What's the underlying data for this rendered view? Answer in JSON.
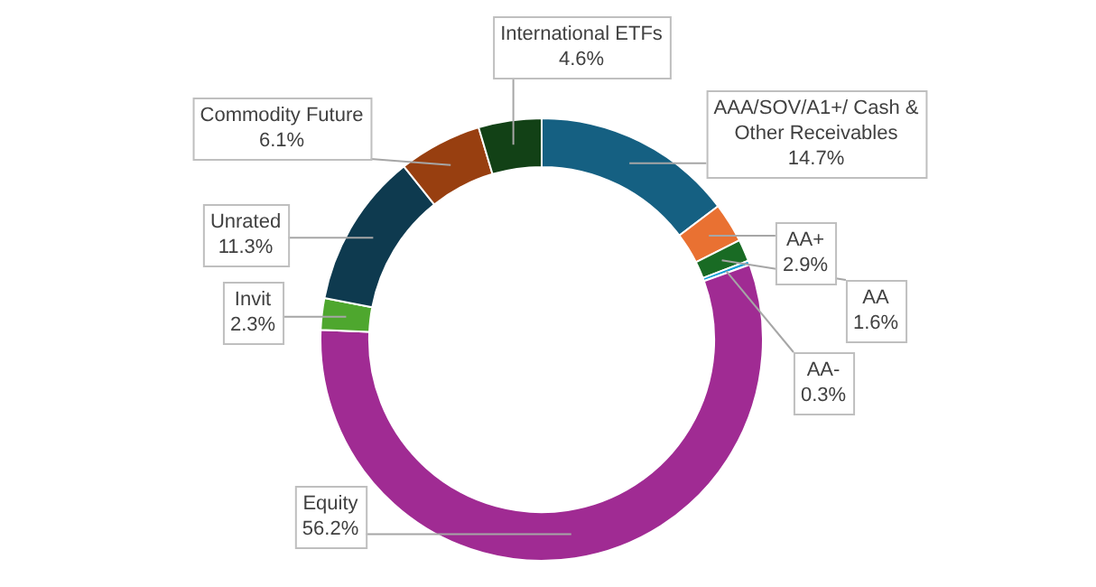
{
  "chart_data": {
    "type": "donut",
    "categories": [
      "AAA/SOV/A1+/ Cash & Other Receivables",
      "AA+",
      "AA",
      "AA-",
      "Equity",
      "Invit",
      "Unrated",
      "Commodity Future",
      "International ETFs"
    ],
    "values": [
      14.7,
      2.9,
      1.6,
      0.3,
      56.2,
      2.3,
      11.3,
      6.1,
      4.6
    ],
    "value_labels": [
      "14.7%",
      "2.9%",
      "1.6%",
      "0.3%",
      "56.2%",
      "2.3%",
      "11.3%",
      "6.1%",
      "4.6%"
    ],
    "colors": [
      "#156082",
      "#e97132",
      "#196b24",
      "#0f9ed5",
      "#a02b93",
      "#4ea72e",
      "#0e3a4f",
      "#983f10",
      "#124116"
    ],
    "legend": false
  }
}
